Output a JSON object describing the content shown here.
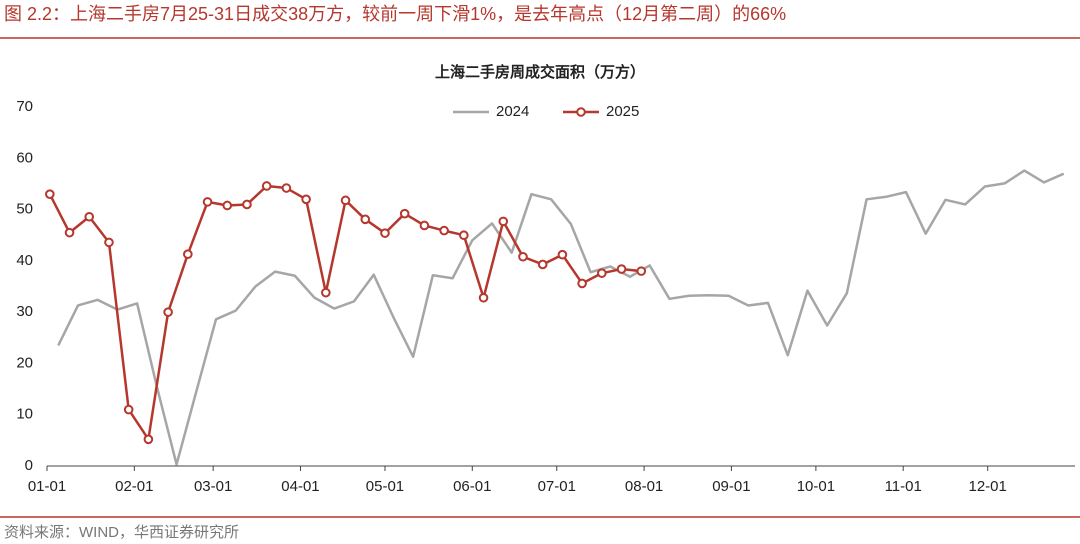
{
  "chart_data": {
    "type": "line",
    "caption": "图 2.2：上海二手房7月25-31日成交38万方，较前一周下滑1%，是去年高点（12月第二周）的66%",
    "title": "上海二手房周成交面积（万方）",
    "source": "资料来源：WIND，华西证券研究所",
    "xlim": [
      0,
      365
    ],
    "xticks": [
      {
        "value": 0,
        "label": "01-01"
      },
      {
        "value": 31,
        "label": "02-01"
      },
      {
        "value": 59,
        "label": "03-01"
      },
      {
        "value": 90,
        "label": "04-01"
      },
      {
        "value": 120,
        "label": "05-01"
      },
      {
        "value": 151,
        "label": "06-01"
      },
      {
        "value": 181,
        "label": "07-01"
      },
      {
        "value": 212,
        "label": "08-01"
      },
      {
        "value": 243,
        "label": "09-01"
      },
      {
        "value": 273,
        "label": "10-01"
      },
      {
        "value": 304,
        "label": "11-01"
      },
      {
        "value": 334,
        "label": "12-01"
      }
    ],
    "ylim": [
      0,
      70
    ],
    "yticks": [
      0,
      10,
      20,
      30,
      40,
      50,
      60,
      70
    ],
    "grid": false,
    "legend": "top",
    "series": [
      {
        "name": "2024",
        "color": "#a6a6a6",
        "markers": false,
        "x": [
          4,
          11,
          18,
          25,
          32,
          39,
          46,
          53,
          60,
          67,
          74,
          81,
          88,
          95,
          102,
          109,
          116,
          123,
          130,
          137,
          144,
          151,
          158,
          165,
          172,
          179,
          186,
          193,
          200,
          207,
          214,
          221,
          228,
          235,
          242,
          249,
          256,
          263,
          270,
          277,
          284,
          291,
          298,
          305,
          312,
          319,
          326,
          333,
          340,
          347,
          354,
          361
        ],
        "values": [
          23.5,
          31.3,
          32.4,
          30.5,
          31.7,
          15.5,
          0.3,
          14.5,
          28.6,
          30.3,
          35,
          37.9,
          37.1,
          32.8,
          30.7,
          32.1,
          37.3,
          29,
          21.3,
          37.2,
          36.6,
          44,
          47.3,
          41.6,
          53,
          52,
          47.2,
          37.8,
          38.9,
          36.9,
          39.1,
          32.6,
          33.2,
          33.3,
          33.2,
          31.3,
          31.8,
          21.6,
          34.2,
          27.4,
          33.7,
          52,
          52.5,
          53.4,
          45.3,
          51.9,
          51,
          54.5,
          55.1,
          57.6,
          55.3,
          57
        ]
      },
      {
        "name": "2025",
        "color": "#b5372d",
        "markers": true,
        "x": [
          1,
          8,
          15,
          22,
          29,
          36,
          43,
          50,
          57,
          64,
          71,
          78,
          85,
          92,
          99,
          106,
          113,
          120,
          127,
          134,
          141,
          148,
          155,
          162,
          169,
          176,
          183,
          190,
          197,
          204,
          211
        ],
        "values": [
          53,
          45.5,
          48.6,
          43.6,
          11,
          5.2,
          30,
          41.3,
          51.5,
          50.8,
          51,
          54.6,
          54.2,
          52,
          33.8,
          51.8,
          48.1,
          45.4,
          49.2,
          46.9,
          45.9,
          45,
          32.8,
          47.7,
          40.8,
          39.3,
          41.2,
          35.6,
          37.6,
          38.4,
          38
        ]
      }
    ]
  }
}
